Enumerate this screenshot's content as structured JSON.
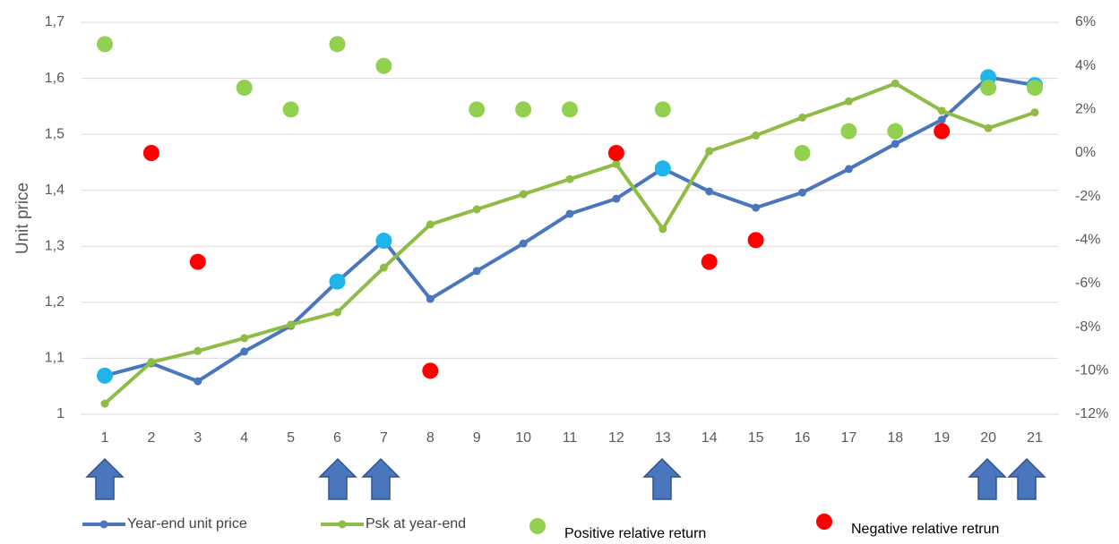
{
  "chart_data": {
    "type": "line",
    "y_label": "Unit price",
    "categories": [
      "1",
      "2",
      "3",
      "4",
      "5",
      "6",
      "7",
      "8",
      "9",
      "10",
      "11",
      "12",
      "13",
      "14",
      "15",
      "16",
      "17",
      "18",
      "19",
      "20",
      "21"
    ],
    "ylim": [
      1,
      1.7
    ],
    "yticks": [
      1,
      {
        "value": 1.1,
        "label": "1,1"
      },
      {
        "value": 1.2,
        "label": "1,2"
      },
      {
        "value": 1.3,
        "label": "1,3"
      },
      {
        "value": 1.4,
        "label": "1,4"
      },
      {
        "value": 1.5,
        "label": "1,5"
      },
      {
        "value": 1.6,
        "label": "1,6"
      },
      {
        "value": 1.7,
        "label": "1,7"
      }
    ],
    "y2lim": [
      -12,
      6
    ],
    "y2ticks": [
      {
        "value": -12,
        "label": "-12%"
      },
      {
        "value": -10,
        "label": "-10%"
      },
      {
        "value": -8,
        "label": "-8%"
      },
      {
        "value": -6,
        "label": "-6%"
      },
      {
        "value": -4,
        "label": "-4%"
      },
      {
        "value": -2,
        "label": "-2%"
      },
      {
        "value": 0,
        "label": "0%"
      },
      {
        "value": 2,
        "label": "2%"
      },
      {
        "value": 4,
        "label": "4%"
      },
      {
        "value": 6,
        "label": "6%"
      }
    ],
    "grid": true,
    "series": [
      {
        "name": "Year-end unit price",
        "type": "line",
        "color": "#4a76bd",
        "point_colors": [
          "#1fb4ec",
          "#4a76bd",
          "#4a76bd",
          "#4a76bd",
          "#4a76bd",
          "#1fb4ec",
          "#1fb4ec",
          "#4a76bd",
          "#4a76bd",
          "#4a76bd",
          "#4a76bd",
          "#4a76bd",
          "#1fb4ec",
          "#4a76bd",
          "#4a76bd",
          "#4a76bd",
          "#4a76bd",
          "#4a76bd",
          "#4a76bd",
          "#1fb4ec",
          "#1fb4ec"
        ],
        "values": [
          1.069,
          1.091,
          1.059,
          1.112,
          1.158,
          1.237,
          1.31,
          1.206,
          1.256,
          1.305,
          1.358,
          1.385,
          1.439,
          1.398,
          1.369,
          1.396,
          1.438,
          1.483,
          1.526,
          1.602,
          1.588
        ]
      },
      {
        "name": "Psk at year-end",
        "type": "line",
        "color": "#8fbc45",
        "values": [
          1.019,
          1.093,
          1.113,
          1.136,
          1.16,
          1.182,
          1.262,
          1.339,
          1.366,
          1.393,
          1.42,
          1.447,
          1.331,
          1.47,
          1.498,
          1.53,
          1.559,
          1.591,
          1.542,
          1.511,
          1.539
        ]
      },
      {
        "name": "Positive relative return",
        "type": "scatter",
        "axis": "y2",
        "color": "#92d050",
        "values": [
          5,
          null,
          null,
          3,
          2,
          5,
          4,
          null,
          2,
          2,
          2,
          null,
          2,
          null,
          null,
          0,
          1,
          1,
          null,
          3,
          3
        ]
      },
      {
        "name": "Negative relative retrun",
        "type": "scatter",
        "axis": "y2",
        "color": "#ff0000",
        "values": [
          null,
          0,
          -5,
          null,
          null,
          null,
          null,
          -10,
          null,
          null,
          null,
          0,
          null,
          -5,
          -4,
          null,
          null,
          null,
          1,
          null,
          null
        ]
      }
    ]
  }
}
